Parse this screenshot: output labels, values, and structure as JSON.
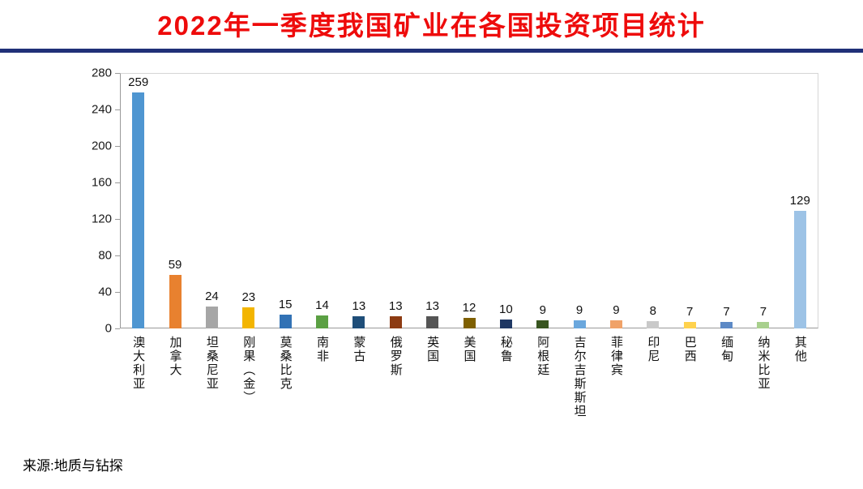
{
  "title": "2022年一季度我国矿业在各国投资项目统计",
  "source": "来源:地质与钻探",
  "colors": {
    "title_red": "#ee0b0b",
    "divider_navy": "#203078",
    "axis_line": "#9a9a9a",
    "label_text": "#111111"
  },
  "chart_data": {
    "type": "bar",
    "title": "2022年一季度我国矿业在各国投资项目统计",
    "xlabel": "",
    "ylabel": "",
    "ylim": [
      0,
      280
    ],
    "yticks": [
      0,
      40,
      80,
      120,
      160,
      200,
      240,
      280
    ],
    "grid": false,
    "legend": "none",
    "data_labels": true,
    "categories": [
      "澳大利亚",
      "加拿大",
      "坦桑尼亚",
      "刚果（金）",
      "莫桑比克",
      "南非",
      "蒙古",
      "俄罗斯",
      "英国",
      "美国",
      "秘鲁",
      "阿根廷",
      "吉尔吉斯斯坦",
      "菲律宾",
      "印尼",
      "巴西",
      "缅甸",
      "纳米比亚",
      "其他"
    ],
    "values": [
      259,
      59,
      24,
      23,
      15,
      14,
      13,
      13,
      13,
      12,
      10,
      9,
      9,
      9,
      8,
      7,
      7,
      7,
      129
    ],
    "bar_colors": [
      "#4f96d1",
      "#e8812f",
      "#a6a6a6",
      "#f3b500",
      "#3272b5",
      "#5ba043",
      "#1f4e79",
      "#8d3b12",
      "#555555",
      "#7f6000",
      "#1f3864",
      "#38551f",
      "#6aa7dd",
      "#f0a268",
      "#c9c9c9",
      "#ffd24d",
      "#5d8ac6",
      "#a8d08d",
      "#9dc3e6"
    ]
  }
}
